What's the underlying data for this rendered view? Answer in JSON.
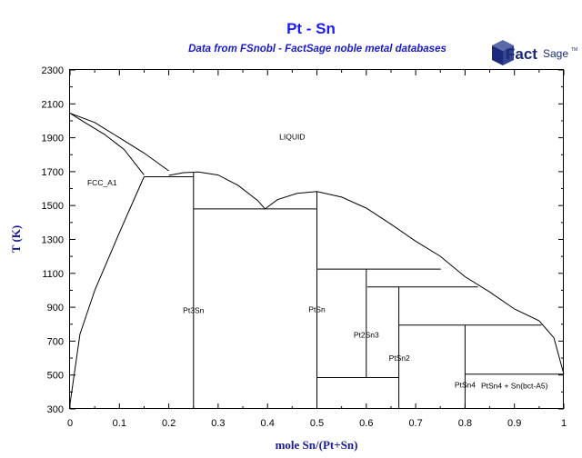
{
  "chart_data": {
    "type": "line",
    "title": "Pt - Sn",
    "subtitle": "Data from FSnobl - FactSage noble metal databases",
    "xlabel": "mole Sn/(Pt+Sn)",
    "ylabel": "T (K)",
    "xlim": [
      0,
      1
    ],
    "ylim": [
      300,
      2300
    ],
    "x_ticks": [
      0,
      0.1,
      0.2,
      0.3,
      0.4,
      0.5,
      0.6,
      0.7,
      0.8,
      0.9,
      1
    ],
    "x_tick_labels": [
      "0",
      "0.1",
      "0.2",
      "0.3",
      "0.4",
      "0.5",
      "0.6",
      "0.7",
      "0.8",
      "0.9",
      "1"
    ],
    "y_ticks": [
      300,
      500,
      700,
      900,
      1100,
      1300,
      1500,
      1700,
      1900,
      2100,
      2300
    ],
    "y_tick_labels": [
      "300",
      "500",
      "700",
      "900",
      "1100",
      "1300",
      "1500",
      "1700",
      "1900",
      "2100",
      "2300"
    ],
    "grid": false,
    "regions": [
      {
        "label": "LIQUID",
        "x": 0.45,
        "y": 1890
      },
      {
        "label": "FCC_A1",
        "x": 0.065,
        "y": 1620
      },
      {
        "label": "Pt3Sn",
        "x": 0.25,
        "y": 865
      },
      {
        "label": "PtSn",
        "x": 0.5,
        "y": 870
      },
      {
        "label": "Pt2Sn3",
        "x": 0.6,
        "y": 720
      },
      {
        "label": "PtSn2",
        "x": 0.667,
        "y": 585
      },
      {
        "label": "PtSn4",
        "x": 0.8,
        "y": 425
      },
      {
        "label": "PtSn4 + Sn(bct-A5)",
        "x": 0.9,
        "y": 420
      }
    ],
    "series": [
      {
        "points": [
          [
            0,
            2045
          ],
          [
            0.03,
            1990
          ],
          [
            0.07,
            1920
          ],
          [
            0.11,
            1830
          ],
          [
            0.15,
            1680
          ]
        ]
      },
      {
        "points": [
          [
            0,
            2045
          ],
          [
            0.05,
            1990
          ],
          [
            0.1,
            1900
          ],
          [
            0.15,
            1810
          ],
          [
            0.2,
            1705
          ]
        ]
      },
      {
        "points": [
          [
            0,
            330
          ],
          [
            0.02,
            740
          ],
          [
            0.05,
            1000
          ],
          [
            0.1,
            1340
          ],
          [
            0.15,
            1670
          ]
        ]
      },
      {
        "points": [
          [
            0.15,
            1670
          ],
          [
            0.25,
            1670
          ]
        ]
      },
      {
        "points": [
          [
            0.2,
            1678
          ],
          [
            0.23,
            1694
          ],
          [
            0.26,
            1698
          ],
          [
            0.3,
            1680
          ],
          [
            0.34,
            1620
          ],
          [
            0.38,
            1530
          ],
          [
            0.395,
            1480
          ]
        ]
      },
      {
        "points": [
          [
            0.395,
            1480
          ],
          [
            0.42,
            1535
          ],
          [
            0.46,
            1572
          ],
          [
            0.5,
            1583
          ],
          [
            0.55,
            1550
          ],
          [
            0.6,
            1485
          ],
          [
            0.65,
            1390
          ],
          [
            0.7,
            1290
          ],
          [
            0.75,
            1200
          ],
          [
            0.8,
            1080
          ],
          [
            0.85,
            990
          ],
          [
            0.9,
            890
          ],
          [
            0.95,
            820
          ],
          [
            0.98,
            720
          ],
          [
            1,
            505
          ]
        ]
      },
      {
        "points": [
          [
            0.25,
            1480
          ],
          [
            0.5,
            1480
          ]
        ]
      },
      {
        "points": [
          [
            0.5,
            1125
          ],
          [
            0.751,
            1125
          ]
        ]
      },
      {
        "points": [
          [
            0.602,
            1020
          ],
          [
            0.826,
            1020
          ]
        ]
      },
      {
        "points": [
          [
            0.666,
            795
          ],
          [
            0.955,
            795
          ]
        ]
      },
      {
        "points": [
          [
            0.8,
            505
          ],
          [
            1,
            505
          ]
        ]
      },
      {
        "points": [
          [
            0.5,
            485
          ],
          [
            0.666,
            485
          ]
        ]
      },
      {
        "points": [
          [
            0.25,
            300
          ],
          [
            0.25,
            1698
          ]
        ]
      },
      {
        "points": [
          [
            0.5,
            300
          ],
          [
            0.5,
            1583
          ]
        ]
      },
      {
        "points": [
          [
            0.6,
            485
          ],
          [
            0.6,
            1125
          ]
        ]
      },
      {
        "points": [
          [
            0.666,
            300
          ],
          [
            0.666,
            1020
          ]
        ]
      },
      {
        "points": [
          [
            0.8,
            300
          ],
          [
            0.8,
            795
          ]
        ]
      }
    ]
  },
  "logo": {
    "brand": "Fact",
    "brand2": "Sage",
    "mark": "TM",
    "icon": "factsage-cube-icon",
    "color": "#1b2a7a"
  }
}
